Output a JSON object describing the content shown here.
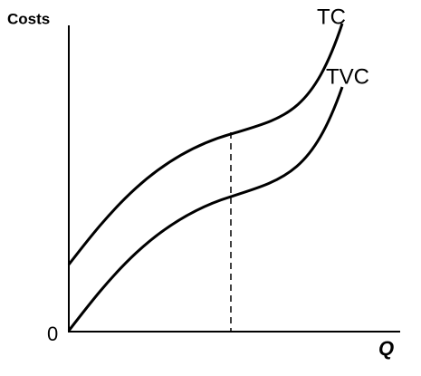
{
  "axes": {
    "y_label": "Costs",
    "x_label": "Q",
    "origin": "0"
  },
  "curves": [
    {
      "label": "TC"
    },
    {
      "label": "TVC"
    }
  ]
}
